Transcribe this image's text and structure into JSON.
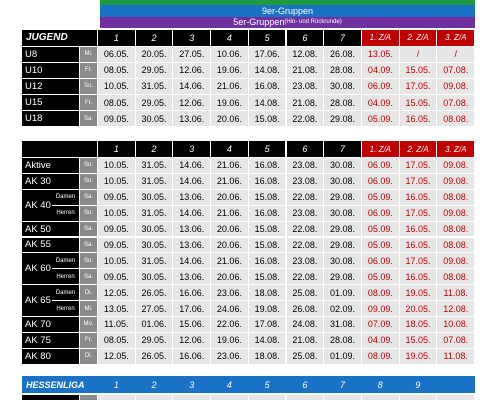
{
  "banners": [
    {
      "label": "9er-Gruppen"
    },
    {
      "label": "5er-Gruppen",
      "note": "(Hin- und Rückrunde)"
    }
  ],
  "tables": [
    {
      "title": "JUGEND",
      "columns": [
        "1",
        "2",
        "3",
        "4",
        "5",
        "6",
        "7"
      ],
      "extra_columns": [
        "1. Z/A",
        "2. Z/A",
        "3. Z/A"
      ],
      "rows": [
        {
          "name": "U8",
          "day": "Mi.",
          "dates": [
            "06.05.",
            "20.05.",
            "27.05.",
            "10.06.",
            "17.06.",
            "12.08.",
            "26.08."
          ],
          "extra": [
            "13.05.",
            "/",
            "/"
          ]
        },
        {
          "name": "U10",
          "day": "Fr.",
          "dates": [
            "08.05.",
            "29.05.",
            "12.06.",
            "19.06.",
            "14.08.",
            "21.08.",
            "28.08."
          ],
          "extra": [
            "04.09.",
            "15.05.",
            "07.08."
          ]
        },
        {
          "name": "U12",
          "day": "So.",
          "dates": [
            "10.05.",
            "31.05.",
            "14.06.",
            "21.06.",
            "16.08.",
            "23.08.",
            "30.08."
          ],
          "extra": [
            "06.09.",
            "17.05.",
            "09.08."
          ]
        },
        {
          "name": "U15",
          "day": "Fr.",
          "dates": [
            "08.05.",
            "29.05.",
            "12.06.",
            "19.06.",
            "14.08.",
            "21.08.",
            "28.08."
          ],
          "extra": [
            "04.09.",
            "15.05.",
            "07.08."
          ]
        },
        {
          "name": "U18",
          "day": "Sa.",
          "dates": [
            "09.05.",
            "30.05.",
            "13.06.",
            "20.06.",
            "15.08.",
            "22.08.",
            "29.08."
          ],
          "extra": [
            "05.09.",
            "16.05.",
            "08.08."
          ]
        }
      ]
    },
    {
      "columns": [
        "1",
        "2",
        "3",
        "4",
        "5",
        "6",
        "7"
      ],
      "extra_columns": [
        "1. Z/A",
        "2. Z/A",
        "3. Z/A"
      ],
      "rows": [
        {
          "name": "Aktive",
          "day": "So.",
          "dates": [
            "10.05.",
            "31.05.",
            "14.06.",
            "21.06.",
            "16.08.",
            "23.08.",
            "30.08."
          ],
          "extra": [
            "06.09.",
            "17.05.",
            "09.08."
          ]
        },
        {
          "name": "AK 30",
          "day": "So.",
          "dates": [
            "10.05.",
            "31.05.",
            "14.06.",
            "21.06.",
            "16.08.",
            "23.08.",
            "30.08."
          ],
          "extra": [
            "06.09.",
            "17.05.",
            "09.08."
          ]
        },
        {
          "name": "AK 40",
          "sub": "Damen",
          "day": "Sa.",
          "dates": [
            "09.05.",
            "30.05.",
            "13.06.",
            "20.06.",
            "15.08.",
            "22.08.",
            "29.08."
          ],
          "extra": [
            "05.09.",
            "16.05.",
            "08.08."
          ]
        },
        {
          "sub": "Herren",
          "day": "So.",
          "dates": [
            "10.05.",
            "31.05.",
            "14.06.",
            "21.06.",
            "16.08.",
            "23.08.",
            "30.08."
          ],
          "extra": [
            "06.09.",
            "17.05.",
            "09.08."
          ]
        },
        {
          "name": "AK 50",
          "day": "Sa.",
          "dates": [
            "09.05.",
            "30.05.",
            "13.06.",
            "20.06.",
            "15.08.",
            "22.08.",
            "29.08."
          ],
          "extra": [
            "05.09.",
            "16.05.",
            "08.08."
          ]
        },
        {
          "name": "AK 55",
          "day": "Sa.",
          "dates": [
            "09.05.",
            "30.05.",
            "13.06.",
            "20.06.",
            "15.08.",
            "22.08.",
            "29.08."
          ],
          "extra": [
            "05.09.",
            "16.05.",
            "08.08."
          ]
        },
        {
          "name": "AK 60",
          "sub": "Damen",
          "day": "So.",
          "dates": [
            "10.05.",
            "31.05.",
            "14.06.",
            "21.06.",
            "16.08.",
            "23.08.",
            "30.08."
          ],
          "extra": [
            "06.09.",
            "17.05.",
            "09.08."
          ]
        },
        {
          "sub": "Herren",
          "day": "Sa.",
          "dates": [
            "09.05.",
            "30.05.",
            "13.06.",
            "20.06.",
            "15.08.",
            "22.08.",
            "29.08."
          ],
          "extra": [
            "05.09.",
            "16.05.",
            "08.08."
          ]
        },
        {
          "name": "AK 65",
          "sub": "Damen",
          "day": "Di.",
          "dates": [
            "12.05.",
            "26.05.",
            "16.06.",
            "23.06.",
            "18.08.",
            "25.08.",
            "01.09."
          ],
          "extra": [
            "08.09.",
            "19.05.",
            "11.08."
          ]
        },
        {
          "sub": "Herren",
          "day": "Mi.",
          "dates": [
            "13.05.",
            "27.05.",
            "17.06.",
            "24.06.",
            "19.08.",
            "26.08.",
            "02.09."
          ],
          "extra": [
            "09.09.",
            "20.05.",
            "12.08."
          ]
        },
        {
          "name": "AK 70",
          "day": "Mo.",
          "dates": [
            "11.05.",
            "01.06.",
            "15.06.",
            "22.06.",
            "17.08.",
            "24.08.",
            "31.08."
          ],
          "extra": [
            "07.09.",
            "18.05.",
            "10.08."
          ]
        },
        {
          "name": "AK 75",
          "day": "Fr.",
          "dates": [
            "08.05.",
            "29.05.",
            "12.06.",
            "19.06.",
            "14.08.",
            "21.08.",
            "28.08."
          ],
          "extra": [
            "04.09.",
            "15.05.",
            "07.08."
          ]
        },
        {
          "name": "AK 80",
          "day": "Di.",
          "dates": [
            "12.05.",
            "26.05.",
            "16.06.",
            "23.06.",
            "18.08.",
            "25.08.",
            "01.09."
          ],
          "extra": [
            "08.09.",
            "19.05.",
            "11.08."
          ]
        }
      ]
    }
  ],
  "league": {
    "title": "HESSENLIGA",
    "columns": [
      "1",
      "2",
      "3",
      "4",
      "5",
      "6",
      "7",
      "8",
      "9"
    ]
  }
}
